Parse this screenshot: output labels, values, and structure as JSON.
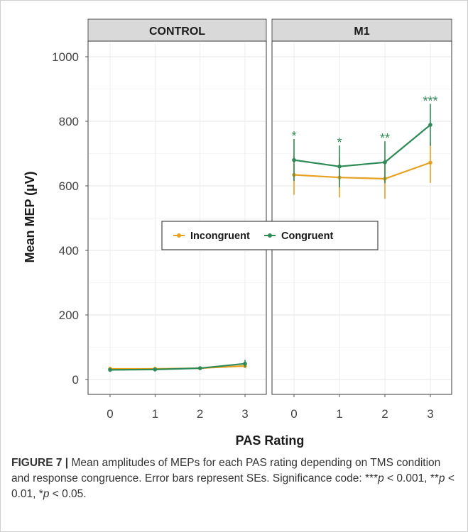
{
  "chart_data": {
    "type": "line",
    "facets": [
      "CONTROL",
      "M1"
    ],
    "x": [
      0,
      1,
      2,
      3
    ],
    "xlabel": "PAS Rating",
    "ylabel": "Mean MEP (µV)",
    "ylim": [
      0,
      1000
    ],
    "yticks": [
      "0",
      "200",
      "400",
      "600",
      "800",
      "1000"
    ],
    "xticks": [
      "0",
      "1",
      "2",
      "3"
    ],
    "grid": true,
    "legend_position": "center",
    "series": [
      {
        "name": "Incongruent",
        "color": "#E8A020",
        "panels": {
          "CONTROL": {
            "values": [
              33,
              33,
              35,
              42
            ],
            "se": [
              5,
              4,
              4,
              6
            ]
          },
          "M1": {
            "values": [
              634,
              626,
              622,
              672
            ],
            "se": [
              62,
              62,
              62,
              63
            ]
          }
        }
      },
      {
        "name": "Congruent",
        "color": "#2E8B57",
        "panels": {
          "CONTROL": {
            "values": [
              30,
              31,
              35,
              49
            ],
            "se": [
              5,
              4,
              4,
              12
            ]
          },
          "M1": {
            "values": [
              680,
              660,
              673,
              789
            ],
            "se": [
              65,
              65,
              65,
              65
            ]
          }
        }
      }
    ],
    "annotations": {
      "M1": [
        "*",
        "*",
        "**",
        "***"
      ]
    }
  },
  "caption": {
    "label": "FIGURE 7",
    "separator": "|",
    "text": "Mean amplitudes of MEPs for each PAS rating depending on TMS condition and response congruence. Error bars represent SEs. Significance code: ",
    "sig": [
      {
        "stars": "***",
        "p": "p",
        "rel": " < 0.001, "
      },
      {
        "stars": "**",
        "p": "p",
        "rel": " < 0.01, "
      },
      {
        "stars": "*",
        "p": "p",
        "rel": " < 0.05."
      }
    ]
  }
}
